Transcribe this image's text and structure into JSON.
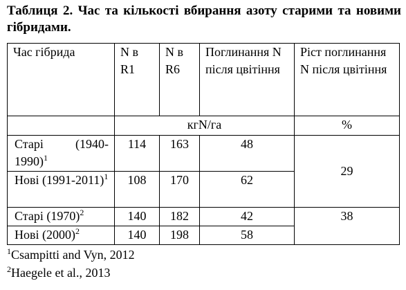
{
  "title": "Таблиця 2. Час та кількості вбирання азоту старими та новими гібридами.",
  "table": {
    "header": [
      "Час гібрида",
      "N в R1",
      "N в R6",
      "Поглинання N після цвітіння",
      "Ріст поглинання N після цвітіння"
    ],
    "units": [
      "кгN/га",
      "%"
    ],
    "rows": [
      {
        "label": "Старі (1940-1990)",
        "note": "1",
        "values": [
          114,
          163,
          48
        ],
        "growth": 29
      },
      {
        "label": "Нові (1991-2011)",
        "note": "1",
        "values": [
          108,
          170,
          62
        ]
      },
      {
        "label": "Старі (1970)",
        "note": "2",
        "values": [
          140,
          182,
          42
        ],
        "growth": 38
      },
      {
        "label": "Нові (2000)",
        "note": "2",
        "values": [
          140,
          198,
          58
        ]
      }
    ]
  },
  "footnotes": [
    {
      "mark": "1",
      "text": "Csampitti and Vyn, 2012"
    },
    {
      "mark": "2",
      "text": "Haegele et al., 2013"
    }
  ]
}
